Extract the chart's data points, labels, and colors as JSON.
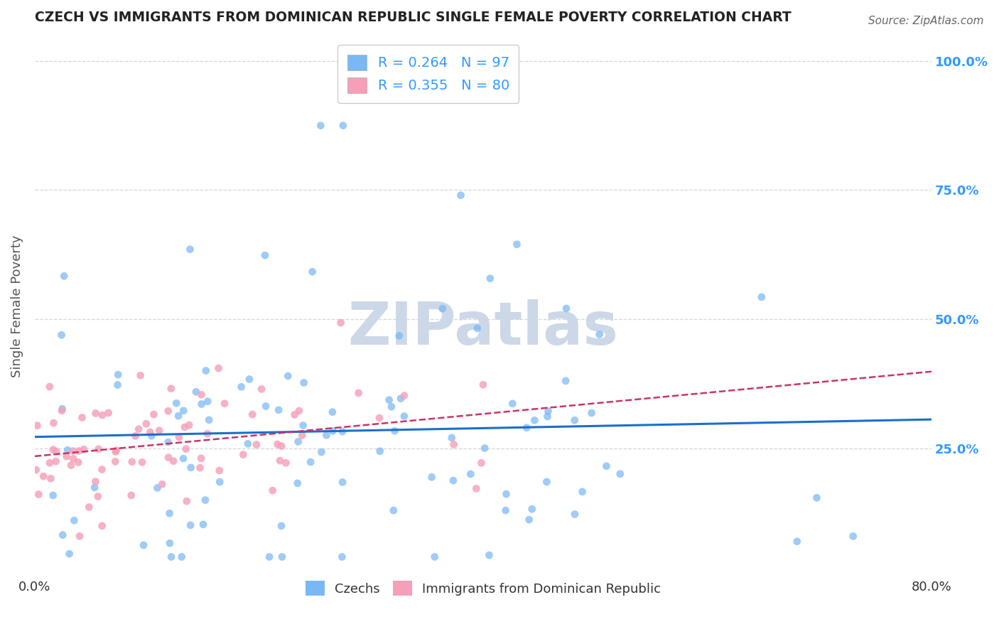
{
  "title": "CZECH VS IMMIGRANTS FROM DOMINICAN REPUBLIC SINGLE FEMALE POVERTY CORRELATION CHART",
  "source_text": "Source: ZipAtlas.com",
  "ylabel": "Single Female Poverty",
  "watermark": "ZIPatlas",
  "xlim": [
    0.0,
    0.8
  ],
  "ylim": [
    0.0,
    1.05
  ],
  "yticks": [
    0.25,
    0.5,
    0.75,
    1.0
  ],
  "ytick_labels": [
    "25.0%",
    "50.0%",
    "75.0%",
    "100.0%"
  ],
  "blue_dot_color": "#7ab8f5",
  "pink_dot_color": "#f5a0b8",
  "trendline_blue_color": "#1a6fcc",
  "trendline_pink_color": "#cc3366",
  "R_czech": 0.264,
  "N_czech": 97,
  "R_dr": 0.355,
  "N_dr": 80,
  "background_color": "#ffffff",
  "grid_color": "#cccccc",
  "title_color": "#222222",
  "axis_label_color": "#555555",
  "watermark_color": "#ccd8e8",
  "right_axis_color": "#3399ff",
  "legend_text_color": "#3399ff"
}
